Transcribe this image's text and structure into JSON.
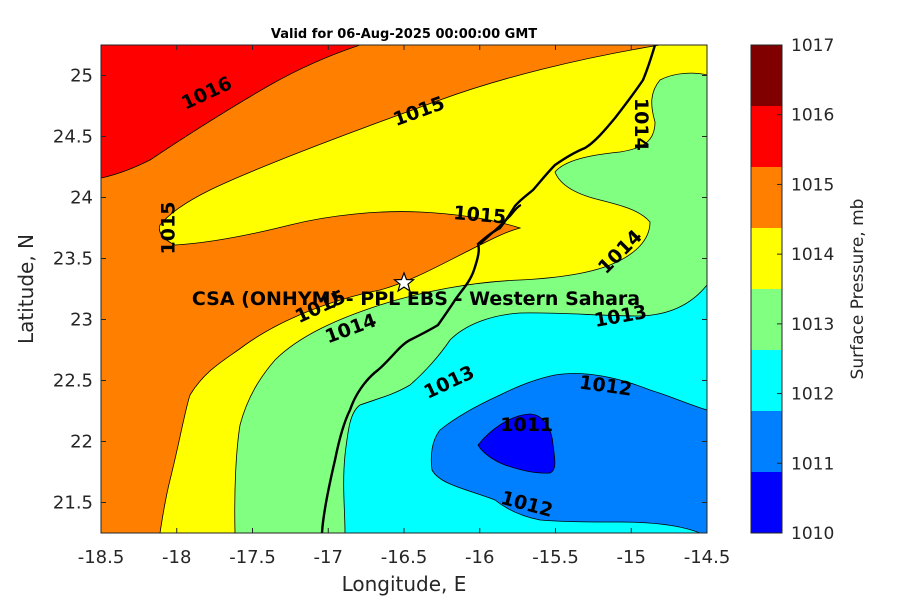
{
  "title": "Valid for 06-Aug-2025 00:00:00 GMT",
  "xlabel": "Longitude, E",
  "ylabel": "Latitude, N",
  "x_ticks": [
    "-18.5",
    "-18",
    "-17.5",
    "-17",
    "-16.5",
    "-16",
    "-15.5",
    "-15",
    "-14.5"
  ],
  "y_ticks": [
    "21.5",
    "22",
    "22.5",
    "23",
    "23.5",
    "24",
    "24.5",
    "25"
  ],
  "colorbar": {
    "title": "Surface Pressure, mb",
    "labels": [
      "1017",
      "1016",
      "1015",
      "1014",
      "1013",
      "1012",
      "1011",
      "1010"
    ],
    "colors": [
      "#800000",
      "#ff0000",
      "#ff8000",
      "#ffff00",
      "#80ff80",
      "#00ffff",
      "#0080ff",
      "#0000ff"
    ]
  },
  "station": {
    "label": "CSA (ONHYM) - PPL EBS - Western Sahara",
    "lon": -16.5,
    "lat": 23.3
  },
  "contour_labels": [
    {
      "text": "1016",
      "lon": -17.8,
      "lat": 24.85
    },
    {
      "text": "1015",
      "lon": -16.4,
      "lat": 24.7
    },
    {
      "text": "1014",
      "lon": -14.94,
      "lat": 24.6
    },
    {
      "text": "1015",
      "lon": -18.05,
      "lat": 23.75
    },
    {
      "text": "1015",
      "lon": -16.0,
      "lat": 23.85
    },
    {
      "text": "1014",
      "lon": -15.07,
      "lat": 23.55
    },
    {
      "text": "1015",
      "lon": -17.05,
      "lat": 23.1
    },
    {
      "text": "1014",
      "lon": -16.85,
      "lat": 22.92
    },
    {
      "text": "1013",
      "lon": -15.07,
      "lat": 23.02
    },
    {
      "text": "1013",
      "lon": -16.2,
      "lat": 22.48
    },
    {
      "text": "1012",
      "lon": -15.17,
      "lat": 22.45
    },
    {
      "text": "1011",
      "lon": -15.69,
      "lat": 22.13
    },
    {
      "text": "1012",
      "lon": -15.69,
      "lat": 21.48
    }
  ],
  "chart_data": {
    "type": "contourf",
    "xlim": [
      -18.5,
      -14.5
    ],
    "ylim": [
      21.25,
      25.25
    ],
    "levels": [
      1010,
      1011,
      1012,
      1013,
      1014,
      1015,
      1016,
      1017
    ]
  }
}
